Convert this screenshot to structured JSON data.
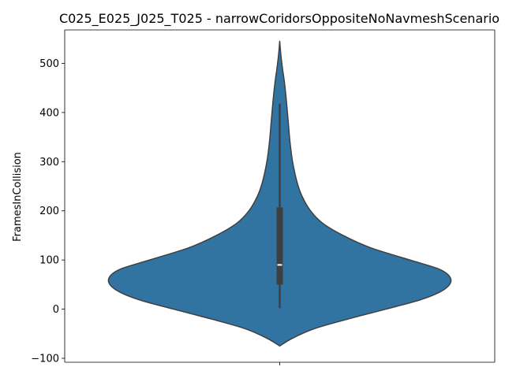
{
  "chart_data": {
    "type": "violin",
    "title": "C025_E025_J025_T025 - narrowCoridorsOppositeNoNavmeshScenario",
    "xlabel": "",
    "ylabel": "FramesInCollision",
    "ylim": [
      -108,
      568
    ],
    "yticks": [
      -100,
      0,
      100,
      200,
      300,
      400,
      500
    ],
    "grid": false,
    "legend": "none",
    "violin_color": "#3274a1",
    "edge_color": "#3f3f3f",
    "box_color": "#3f3f3f",
    "median_color": "#ffffff",
    "density_profile": [
      {
        "y": -75,
        "w": 0.0
      },
      {
        "y": -60,
        "w": 0.07
      },
      {
        "y": -40,
        "w": 0.2
      },
      {
        "y": -20,
        "w": 0.4
      },
      {
        "y": 0,
        "w": 0.62
      },
      {
        "y": 20,
        "w": 0.83
      },
      {
        "y": 40,
        "w": 0.96
      },
      {
        "y": 60,
        "w": 1.0
      },
      {
        "y": 80,
        "w": 0.94
      },
      {
        "y": 100,
        "w": 0.76
      },
      {
        "y": 125,
        "w": 0.53
      },
      {
        "y": 150,
        "w": 0.37
      },
      {
        "y": 175,
        "w": 0.25
      },
      {
        "y": 200,
        "w": 0.18
      },
      {
        "y": 230,
        "w": 0.13
      },
      {
        "y": 260,
        "w": 0.1
      },
      {
        "y": 300,
        "w": 0.075
      },
      {
        "y": 340,
        "w": 0.06
      },
      {
        "y": 380,
        "w": 0.05
      },
      {
        "y": 420,
        "w": 0.04
      },
      {
        "y": 460,
        "w": 0.028
      },
      {
        "y": 490,
        "w": 0.016
      },
      {
        "y": 520,
        "w": 0.006
      },
      {
        "y": 545,
        "w": 0.0
      }
    ],
    "summary": {
      "min": 2,
      "q1": 50,
      "median": 90,
      "q3": 207,
      "whisker_high": 418
    }
  }
}
